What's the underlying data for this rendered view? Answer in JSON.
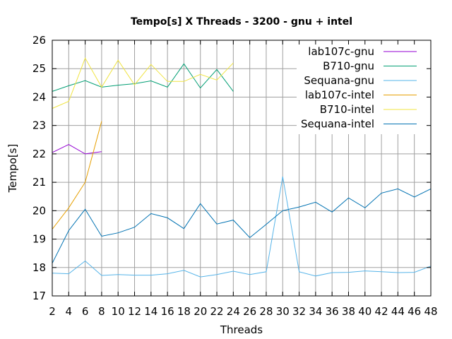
{
  "chart_data": {
    "type": "line",
    "title": "Tempo[s] X Threads - 3200 - gnu + intel",
    "xlabel": "Threads",
    "ylabel": "Tempo[s]",
    "xlim": [
      2,
      48
    ],
    "ylim": [
      17,
      26
    ],
    "xticks": [
      2,
      4,
      6,
      8,
      10,
      12,
      14,
      16,
      18,
      20,
      22,
      24,
      26,
      28,
      30,
      32,
      34,
      36,
      38,
      40,
      42,
      44,
      46,
      48
    ],
    "yticks": [
      17,
      18,
      19,
      20,
      21,
      22,
      23,
      24,
      25,
      26
    ],
    "grid": true,
    "legend_position": "top-right",
    "series": [
      {
        "name": "lab107c-gnu",
        "color": "#9400d3",
        "x": [
          2,
          4,
          6,
          8
        ],
        "y": [
          22.05,
          22.33,
          22.0,
          22.08
        ]
      },
      {
        "name": "B710-gnu",
        "color": "#009e73",
        "x": [
          2,
          4,
          6,
          8,
          10,
          12,
          14,
          16,
          18,
          20,
          22,
          24
        ],
        "y": [
          24.2,
          24.4,
          24.58,
          24.35,
          24.42,
          24.47,
          24.57,
          24.35,
          25.17,
          24.32,
          24.97,
          24.2
        ]
      },
      {
        "name": "Sequana-gnu",
        "color": "#56b4e9",
        "x": [
          2,
          4,
          6,
          8,
          10,
          12,
          14,
          16,
          18,
          20,
          22,
          24,
          26,
          28,
          30,
          32,
          34,
          36,
          38,
          40,
          42,
          44,
          46,
          48
        ],
        "y": [
          17.8,
          17.78,
          18.23,
          17.72,
          17.75,
          17.73,
          17.73,
          17.78,
          17.9,
          17.67,
          17.75,
          17.87,
          17.75,
          17.85,
          21.2,
          17.85,
          17.7,
          17.82,
          17.83,
          17.88,
          17.85,
          17.82,
          17.83,
          18.05
        ]
      },
      {
        "name": "lab107c-intel",
        "color": "#e69f00",
        "x": [
          2,
          4,
          6,
          8
        ],
        "y": [
          19.35,
          20.1,
          21.0,
          23.15
        ]
      },
      {
        "name": "B710-intel",
        "color": "#f0e442",
        "x": [
          2,
          4,
          6,
          8,
          10,
          12,
          14,
          16,
          18,
          20,
          22,
          24
        ],
        "y": [
          23.6,
          23.85,
          25.37,
          24.35,
          25.3,
          24.43,
          25.15,
          24.55,
          24.55,
          24.8,
          24.6,
          25.2
        ]
      },
      {
        "name": "Sequana-intel",
        "color": "#0072b2",
        "x": [
          2,
          4,
          6,
          8,
          10,
          12,
          14,
          16,
          18,
          20,
          22,
          24,
          26,
          28,
          30,
          32,
          34,
          36,
          38,
          40,
          42,
          44,
          46,
          48
        ],
        "y": [
          18.15,
          19.3,
          20.05,
          19.1,
          19.22,
          19.42,
          19.9,
          19.75,
          19.37,
          20.25,
          19.53,
          19.67,
          19.05,
          19.52,
          20.0,
          20.13,
          20.3,
          19.95,
          20.45,
          20.1,
          20.62,
          20.77,
          20.48,
          20.77
        ]
      }
    ]
  }
}
